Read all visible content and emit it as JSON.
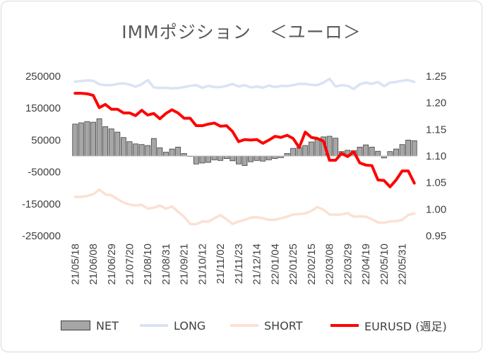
{
  "title": "IMMポジション　＜ユーロ＞",
  "chart_data": {
    "type": "bar+line",
    "title": "IMMポジション　＜ユーロ＞",
    "x_tick_labels": [
      "21/05/18",
      "21/06/08",
      "21/06/29",
      "21/07/20",
      "21/08/10",
      "21/08/31",
      "21/09/21",
      "21/10/12",
      "21/11/02",
      "21/11/23",
      "21/12/14",
      "22/01/04",
      "22/01/25",
      "22/02/15",
      "22/03/08",
      "22/03/29",
      "22/04/19",
      "22/05/10",
      "22/05/31"
    ],
    "y_left": {
      "range": [
        -250000,
        250000
      ],
      "ticks": [
        "250000",
        "150000",
        "50000",
        "-50000",
        "-150000",
        "-250000"
      ]
    },
    "y_right": {
      "range": [
        0.95,
        1.25
      ],
      "ticks": [
        "1.25",
        "1.20",
        "1.15",
        "1.10",
        "1.05",
        "1.00",
        "0.95"
      ]
    },
    "series": [
      {
        "name": "NET",
        "kind": "bar",
        "axis": "left",
        "color": "#a6a6a6",
        "values": [
          100000,
          104000,
          108000,
          106000,
          117000,
          92000,
          85000,
          75000,
          58000,
          45000,
          38000,
          36000,
          33000,
          55000,
          26000,
          12000,
          22000,
          28000,
          8000,
          0,
          -25000,
          -22000,
          -20000,
          -12000,
          -14000,
          -8000,
          -15000,
          -25000,
          -30000,
          -18000,
          -14000,
          -16000,
          -12000,
          -8000,
          -5000,
          8000,
          24000,
          27000,
          33000,
          44000,
          52000,
          60000,
          62000,
          56000,
          14000,
          18000,
          17000,
          28000,
          35000,
          28000,
          15000,
          -6000,
          14000,
          22000,
          36000,
          50000,
          48000
        ]
      },
      {
        "name": "LONG",
        "kind": "line",
        "axis": "left",
        "color": "#dae3f3",
        "values": [
          233000,
          235000,
          237000,
          236000,
          225000,
          222000,
          222000,
          226000,
          228000,
          224000,
          217000,
          225000,
          238000,
          215000,
          213000,
          214000,
          212000,
          213000,
          216000,
          220000,
          222000,
          214000,
          220000,
          216000,
          216000,
          220000,
          226000,
          218000,
          222000,
          215000,
          218000,
          214000,
          221000,
          216000,
          220000,
          219000,
          222000,
          226000,
          226000,
          223000,
          222000,
          230000,
          242000,
          218000,
          222000,
          220000,
          210000,
          225000,
          230000,
          226000,
          232000,
          219000,
          230000,
          232000,
          236000,
          238000,
          232000
        ]
      },
      {
        "name": "SHORT",
        "kind": "line",
        "axis": "left",
        "color": "#fbe1d3",
        "values": [
          -128000,
          -128000,
          -125000,
          -120000,
          -105000,
          -120000,
          -123000,
          -135000,
          -146000,
          -152000,
          -155000,
          -153000,
          -165000,
          -162000,
          -155000,
          -165000,
          -158000,
          -175000,
          -190000,
          -213000,
          -214000,
          -205000,
          -206000,
          -195000,
          -185000,
          -198000,
          -213000,
          -205000,
          -200000,
          -193000,
          -192000,
          -195000,
          -200000,
          -200000,
          -195000,
          -190000,
          -183000,
          -182000,
          -180000,
          -172000,
          -160000,
          -168000,
          -183000,
          -184000,
          -183000,
          -179000,
          -190000,
          -189000,
          -190000,
          -198000,
          -208000,
          -209000,
          -205000,
          -204000,
          -200000,
          -185000,
          -180000
        ]
      },
      {
        "name": "EURUSD (週足)",
        "kind": "line",
        "axis": "right",
        "color": "#ff0000",
        "values": [
          1.218,
          1.218,
          1.217,
          1.214,
          1.191,
          1.197,
          1.188,
          1.188,
          1.181,
          1.181,
          1.176,
          1.186,
          1.177,
          1.18,
          1.17,
          1.18,
          1.187,
          1.181,
          1.171,
          1.171,
          1.157,
          1.157,
          1.16,
          1.162,
          1.156,
          1.157,
          1.146,
          1.127,
          1.131,
          1.13,
          1.131,
          1.124,
          1.13,
          1.137,
          1.135,
          1.139,
          1.133,
          1.116,
          1.145,
          1.135,
          1.133,
          1.128,
          1.092,
          1.092,
          1.105,
          1.099,
          1.108,
          1.087,
          1.083,
          1.082,
          1.055,
          1.054,
          1.042,
          1.055,
          1.072,
          1.072,
          1.049
        ]
      }
    ],
    "grid": false,
    "legend": "bottom"
  },
  "legend": {
    "net": "NET",
    "long": "LONG",
    "short": "SHORT",
    "eurusd": "EURUSD (週足)"
  },
  "colors": {
    "net": "#a6a6a6",
    "long": "#dae3f3",
    "short": "#fbe1d3",
    "eurusd": "#ff0000",
    "axis_text": "#404040"
  }
}
